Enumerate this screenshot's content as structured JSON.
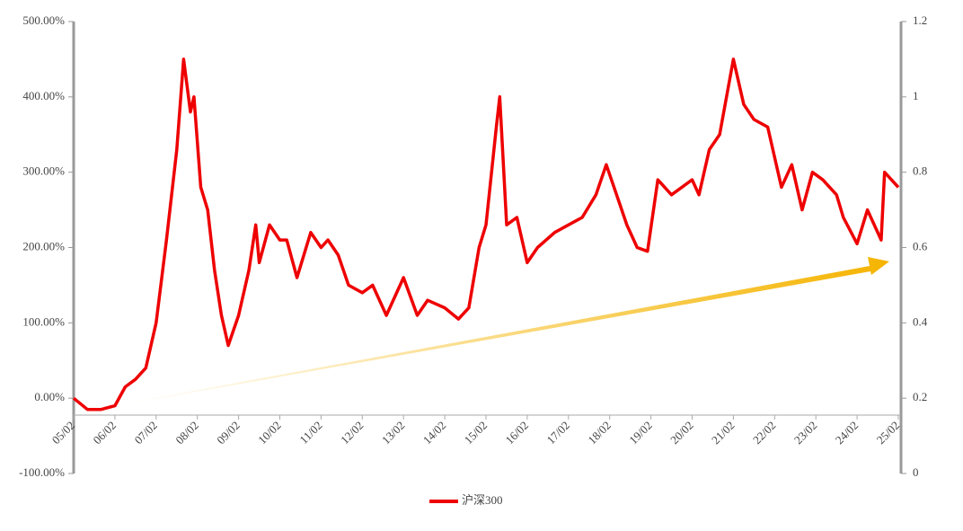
{
  "chart_data": {
    "type": "line",
    "x": [
      "05/02",
      "05/06",
      "05/10",
      "06/02",
      "06/05",
      "06/08",
      "06/11",
      "07/02",
      "07/05",
      "07/08",
      "07/10",
      "07/12",
      "08/01",
      "08/03",
      "08/05",
      "08/07",
      "08/09",
      "08/11",
      "09/02",
      "09/05",
      "09/07",
      "09/08",
      "09/11",
      "10/02",
      "10/04",
      "10/07",
      "10/11",
      "11/02",
      "11/04",
      "11/07",
      "11/10",
      "12/02",
      "12/05",
      "12/09",
      "13/02",
      "13/06",
      "13/09",
      "14/02",
      "14/06",
      "14/09",
      "14/12",
      "15/02",
      "15/05",
      "15/06",
      "15/08",
      "15/11",
      "16/02",
      "16/05",
      "16/10",
      "17/02",
      "17/06",
      "17/10",
      "18/01",
      "18/04",
      "18/07",
      "18/10",
      "19/01",
      "19/04",
      "19/08",
      "20/02",
      "20/04",
      "20/07",
      "20/10",
      "21/02",
      "21/05",
      "21/08",
      "21/12",
      "22/04",
      "22/07",
      "22/10",
      "23/01",
      "23/04",
      "23/08",
      "23/10",
      "24/02",
      "24/05",
      "24/09",
      "24/10",
      "25/02"
    ],
    "series": [
      {
        "name": "沪深300",
        "color": "#ee0000",
        "values": [
          0,
          -15,
          -15,
          -10,
          15,
          25,
          40,
          100,
          210,
          330,
          450,
          380,
          400,
          280,
          250,
          170,
          110,
          70,
          110,
          170,
          230,
          180,
          230,
          210,
          210,
          160,
          220,
          200,
          210,
          190,
          150,
          140,
          150,
          110,
          160,
          110,
          130,
          120,
          105,
          120,
          200,
          230,
          360,
          400,
          230,
          240,
          180,
          200,
          220,
          230,
          240,
          270,
          310,
          270,
          230,
          200,
          195,
          290,
          270,
          290,
          270,
          330,
          350,
          450,
          390,
          370,
          360,
          280,
          310,
          250,
          300,
          290,
          270,
          240,
          205,
          250,
          210,
          300,
          280
        ]
      }
    ],
    "xticks": [
      "05/02",
      "06/02",
      "07/02",
      "08/02",
      "09/02",
      "10/02",
      "11/02",
      "12/02",
      "13/02",
      "14/02",
      "15/02",
      "16/02",
      "17/02",
      "18/02",
      "19/02",
      "20/02",
      "21/02",
      "22/02",
      "23/02",
      "24/02",
      "25/02"
    ],
    "ylim": [
      -100,
      500
    ],
    "yticks": [
      {
        "value": -100,
        "label": "-100.00%"
      },
      {
        "value": 0,
        "label": "0.00%"
      },
      {
        "value": 100,
        "label": "100.00%"
      },
      {
        "value": 200,
        "label": "200.00%"
      },
      {
        "value": 300,
        "label": "300.00%"
      },
      {
        "value": 400,
        "label": "400.00%"
      },
      {
        "value": 500,
        "label": "500.00%"
      }
    ],
    "y2lim": [
      0,
      1.2
    ],
    "y2ticks": [
      0,
      0.2,
      0.4,
      0.6,
      0.8,
      1,
      1.2
    ]
  }
}
